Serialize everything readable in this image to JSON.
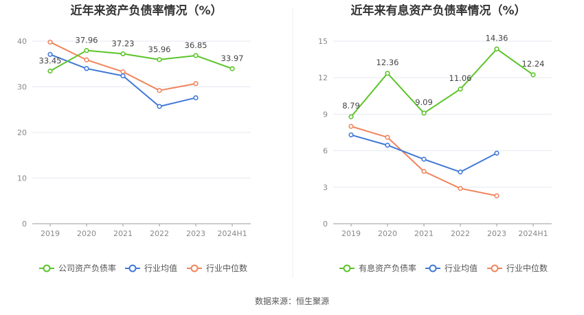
{
  "charts": [
    {
      "title": "近年来资产负债率情况（%）",
      "categories": [
        "2019",
        "2020",
        "2021",
        "2022",
        "2023",
        "2024H1"
      ],
      "y_ticks": [
        "0",
        "10",
        "20",
        "30",
        "40"
      ],
      "legend": [
        "公司资产负债率",
        "行业均值",
        "行业中位数"
      ]
    },
    {
      "title": "近年来有息资产负债率情况（%）",
      "categories": [
        "2019",
        "2020",
        "2021",
        "2022",
        "2023",
        "2024H1"
      ],
      "y_ticks": [
        "0",
        "3",
        "6",
        "9",
        "12",
        "15"
      ],
      "legend": [
        "有息资产负债率",
        "行业均值",
        "行业中位数"
      ]
    }
  ],
  "source": "数据来源：恒生聚源",
  "colors": {
    "company": "#5ac427",
    "industry_avg": "#3f78d8",
    "industry_median": "#f0845c",
    "grid": "#e4e8f0",
    "axis": "#999999"
  },
  "chart_data": [
    {
      "type": "line",
      "title": "近年来资产负债率情况（%）",
      "x": [
        "2019",
        "2020",
        "2021",
        "2022",
        "2023",
        "2024H1"
      ],
      "ylim": [
        0,
        40
      ],
      "grid": true,
      "legend_position": "bottom",
      "series": [
        {
          "name": "公司资产负债率",
          "values": [
            33.45,
            37.96,
            37.23,
            35.96,
            36.85,
            33.97
          ],
          "labeled": true
        },
        {
          "name": "行业均值",
          "values": [
            37.1,
            34.0,
            32.4,
            25.7,
            27.6,
            null
          ],
          "labeled": false
        },
        {
          "name": "行业中位数",
          "values": [
            39.8,
            35.9,
            33.3,
            29.2,
            30.7,
            null
          ],
          "labeled": false
        }
      ]
    },
    {
      "type": "line",
      "title": "近年来有息资产负债率情况（%）",
      "x": [
        "2019",
        "2020",
        "2021",
        "2022",
        "2023",
        "2024H1"
      ],
      "ylim": [
        0,
        15
      ],
      "grid": true,
      "legend_position": "bottom",
      "series": [
        {
          "name": "有息资产负债率",
          "values": [
            8.79,
            12.36,
            9.09,
            11.06,
            14.36,
            12.24
          ],
          "labeled": true
        },
        {
          "name": "行业均值",
          "values": [
            7.3,
            6.45,
            5.3,
            4.25,
            5.8,
            null
          ],
          "labeled": false
        },
        {
          "name": "行业中位数",
          "values": [
            8.0,
            7.1,
            4.3,
            2.9,
            2.3,
            null
          ],
          "labeled": false
        }
      ]
    }
  ]
}
